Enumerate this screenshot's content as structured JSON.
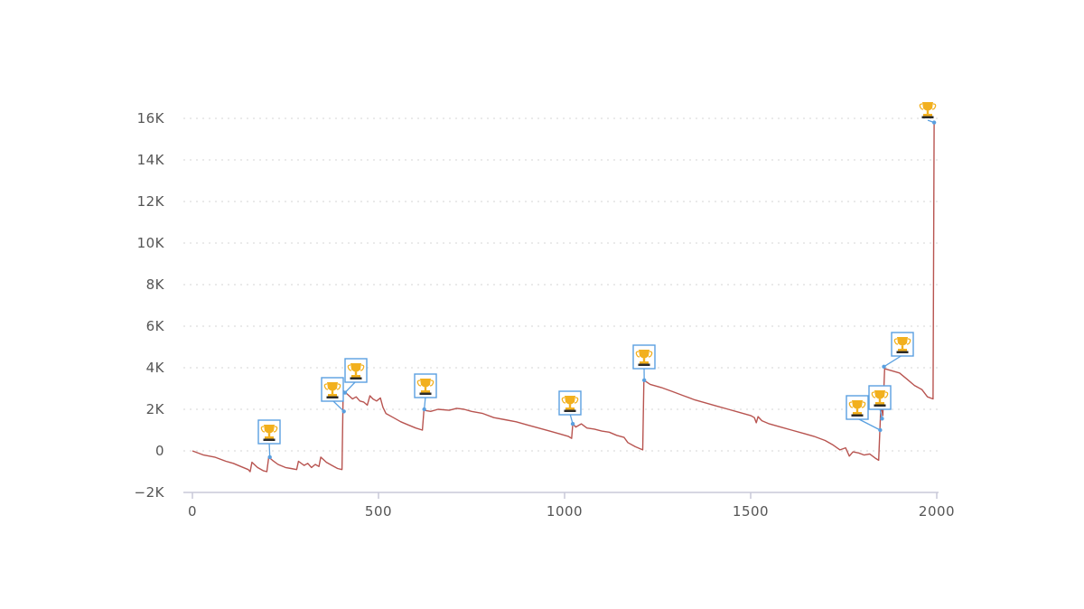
{
  "colors": {
    "line": "#b85450",
    "marker_border": "#5aa0e0",
    "marker_bg": "#ffffff",
    "trophy": "#f2b01e",
    "trophy_base": "#2a2a2a",
    "grid": "#d4d4d4",
    "axis": "#c8c8d8"
  },
  "chart_data": {
    "type": "line",
    "title": "",
    "xlabel": "",
    "ylabel": "",
    "xlim": [
      0,
      2000
    ],
    "ylim": [
      -2000,
      16000
    ],
    "x_ticks": [
      0,
      500,
      1000,
      1500,
      2000
    ],
    "x_tick_labels": [
      "0",
      "500",
      "1000",
      "1500",
      "2000"
    ],
    "y_ticks": [
      -2000,
      0,
      2000,
      4000,
      6000,
      8000,
      10000,
      12000,
      14000,
      16000
    ],
    "y_tick_labels": [
      "−2K",
      "0",
      "2K",
      "4K",
      "6K",
      "8K",
      "10K",
      "12K",
      "14K",
      "16K"
    ],
    "grid": "horizontal",
    "series": [
      {
        "points": [
          [
            0,
            0
          ],
          [
            30,
            -200
          ],
          [
            60,
            -300
          ],
          [
            90,
            -500
          ],
          [
            110,
            -600
          ],
          [
            130,
            -750
          ],
          [
            150,
            -900
          ],
          [
            155,
            -1000
          ],
          [
            160,
            -550
          ],
          [
            175,
            -800
          ],
          [
            190,
            -950
          ],
          [
            200,
            -1000
          ],
          [
            205,
            -300
          ],
          [
            215,
            -450
          ],
          [
            230,
            -650
          ],
          [
            250,
            -800
          ],
          [
            265,
            -850
          ],
          [
            280,
            -900
          ],
          [
            285,
            -500
          ],
          [
            300,
            -700
          ],
          [
            310,
            -600
          ],
          [
            320,
            -800
          ],
          [
            330,
            -650
          ],
          [
            340,
            -750
          ],
          [
            345,
            -300
          ],
          [
            360,
            -550
          ],
          [
            375,
            -700
          ],
          [
            390,
            -850
          ],
          [
            402,
            -900
          ],
          [
            405,
            2900
          ],
          [
            418,
            2700
          ],
          [
            430,
            2500
          ],
          [
            440,
            2600
          ],
          [
            450,
            2400
          ],
          [
            460,
            2350
          ],
          [
            470,
            2200
          ],
          [
            477,
            2650
          ],
          [
            485,
            2500
          ],
          [
            495,
            2400
          ],
          [
            505,
            2550
          ],
          [
            512,
            2100
          ],
          [
            520,
            1800
          ],
          [
            540,
            1600
          ],
          [
            560,
            1400
          ],
          [
            580,
            1250
          ],
          [
            600,
            1100
          ],
          [
            618,
            1000
          ],
          [
            622,
            1950
          ],
          [
            640,
            1900
          ],
          [
            660,
            2000
          ],
          [
            690,
            1950
          ],
          [
            710,
            2050
          ],
          [
            730,
            2000
          ],
          [
            750,
            1900
          ],
          [
            780,
            1800
          ],
          [
            810,
            1600
          ],
          [
            840,
            1500
          ],
          [
            870,
            1400
          ],
          [
            900,
            1250
          ],
          [
            930,
            1100
          ],
          [
            960,
            950
          ],
          [
            990,
            800
          ],
          [
            1010,
            700
          ],
          [
            1019,
            600
          ],
          [
            1022,
            1300
          ],
          [
            1030,
            1150
          ],
          [
            1045,
            1300
          ],
          [
            1060,
            1100
          ],
          [
            1080,
            1050
          ],
          [
            1100,
            950
          ],
          [
            1120,
            900
          ],
          [
            1140,
            750
          ],
          [
            1160,
            650
          ],
          [
            1170,
            400
          ],
          [
            1190,
            200
          ],
          [
            1210,
            50
          ],
          [
            1213,
            3400
          ],
          [
            1230,
            3200
          ],
          [
            1260,
            3050
          ],
          [
            1290,
            2850
          ],
          [
            1320,
            2650
          ],
          [
            1350,
            2450
          ],
          [
            1380,
            2300
          ],
          [
            1410,
            2150
          ],
          [
            1440,
            2000
          ],
          [
            1470,
            1850
          ],
          [
            1500,
            1700
          ],
          [
            1510,
            1600
          ],
          [
            1515,
            1350
          ],
          [
            1520,
            1650
          ],
          [
            1530,
            1450
          ],
          [
            1550,
            1300
          ],
          [
            1580,
            1150
          ],
          [
            1610,
            1000
          ],
          [
            1640,
            850
          ],
          [
            1670,
            700
          ],
          [
            1700,
            500
          ],
          [
            1720,
            300
          ],
          [
            1740,
            50
          ],
          [
            1755,
            150
          ],
          [
            1765,
            -250
          ],
          [
            1775,
            -50
          ],
          [
            1790,
            -100
          ],
          [
            1805,
            -200
          ],
          [
            1820,
            -150
          ],
          [
            1835,
            -350
          ],
          [
            1844,
            -450
          ],
          [
            1850,
            2250
          ],
          [
            1855,
            1700
          ],
          [
            1860,
            3950
          ],
          [
            1880,
            3850
          ],
          [
            1900,
            3750
          ],
          [
            1920,
            3450
          ],
          [
            1940,
            3150
          ],
          [
            1960,
            2950
          ],
          [
            1975,
            2600
          ],
          [
            1990,
            2500
          ],
          [
            1993,
            15800
          ]
        ]
      }
    ],
    "markers": [
      {
        "x": 208,
        "y": -300,
        "label": "🏆"
      },
      {
        "x": 407,
        "y": 1900,
        "label": "🏆"
      },
      {
        "x": 410,
        "y": 2800,
        "label": "🏆"
      },
      {
        "x": 623,
        "y": 2000,
        "label": "🏆"
      },
      {
        "x": 1022,
        "y": 1300,
        "label": "🏆"
      },
      {
        "x": 1214,
        "y": 3400,
        "label": "🏆"
      },
      {
        "x": 1848,
        "y": 1000,
        "label": "🏆"
      },
      {
        "x": 1853,
        "y": 1550,
        "label": "🏆"
      },
      {
        "x": 1858,
        "y": 4050,
        "label": "🏆"
      },
      {
        "x": 1993,
        "y": 15800,
        "label": "🏆"
      }
    ]
  }
}
